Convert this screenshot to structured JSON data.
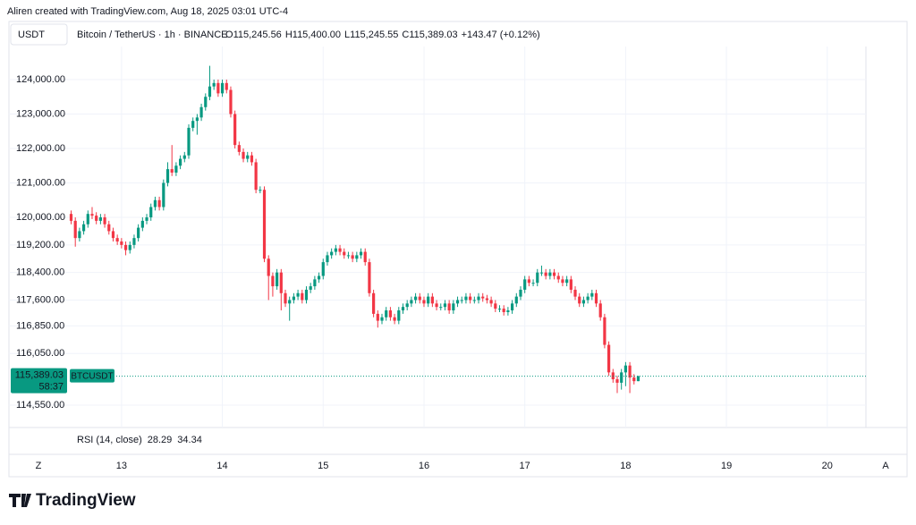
{
  "header": "Aliren created with TradingView.com, Aug 18, 2025 03:01 UTC-4",
  "currency_button": "USDT",
  "symbol_line": "Bitcoin / TetherUS · 1h · BINANCE",
  "ohlc_legend": [
    {
      "label": "O",
      "value": "115,245.56"
    },
    {
      "label": "H",
      "value": "115,400.00"
    },
    {
      "label": "L",
      "value": "115,245.55"
    },
    {
      "label": "C",
      "value": "115,389.03"
    }
  ],
  "change": "+143.47 (+0.12%)",
  "rsi": {
    "label": "RSI (14, close)",
    "values": [
      28.29,
      34.34
    ],
    "colors": [
      "#9c27b0",
      "#e6e600"
    ]
  },
  "axis_buttons": [
    "Z",
    "A"
  ],
  "logo": "TradingView",
  "chart_data": {
    "type": "candlestick",
    "up_color": "#089981",
    "down_color": "#f23645",
    "grid": true,
    "last_price": {
      "value": 115389.03,
      "label": "115,389.03"
    },
    "countdown": "58:37",
    "symbol_tag": "BTCUSDT",
    "ylim": [
      113900,
      124960
    ],
    "yticks": [
      {
        "value": 124000,
        "label": "124,000.00"
      },
      {
        "value": 123000,
        "label": "123,000.00"
      },
      {
        "value": 122000,
        "label": "122,000.00"
      },
      {
        "value": 121000,
        "label": "121,000.00"
      },
      {
        "value": 120000,
        "label": "120,000.00"
      },
      {
        "value": 119200,
        "label": "119,200.00"
      },
      {
        "value": 118400,
        "label": "118,400.00"
      },
      {
        "value": 117600,
        "label": "117,600.00"
      },
      {
        "value": 116850,
        "label": "116,850.00"
      },
      {
        "value": 116050,
        "label": "116,050.00"
      },
      {
        "value": 114550,
        "label": "114,550.00"
      }
    ],
    "xlim": [
      -26.8,
      177.2
    ],
    "xticks": [
      {
        "value": 0,
        "label": "13"
      },
      {
        "value": 24,
        "label": "14"
      },
      {
        "value": 48,
        "label": "15"
      },
      {
        "value": 72,
        "label": "16"
      },
      {
        "value": 96,
        "label": "17"
      },
      {
        "value": 120,
        "label": "18"
      },
      {
        "value": 144,
        "label": "19"
      },
      {
        "value": 168,
        "label": "20"
      }
    ],
    "x": [
      -12,
      -11,
      -10,
      -9,
      -8,
      -7,
      -6,
      -5,
      -4,
      -3,
      -2,
      -1,
      0,
      1,
      2,
      3,
      4,
      5,
      6,
      7,
      8,
      9,
      10,
      11,
      12,
      13,
      14,
      15,
      16,
      17,
      18,
      19,
      20,
      21,
      22,
      23,
      24,
      25,
      26,
      27,
      28,
      29,
      30,
      31,
      32,
      33,
      34,
      35,
      36,
      37,
      38,
      39,
      40,
      41,
      42,
      43,
      44,
      45,
      46,
      47,
      48,
      49,
      50,
      51,
      52,
      53,
      54,
      55,
      56,
      57,
      58,
      59,
      60,
      61,
      62,
      63,
      64,
      65,
      66,
      67,
      68,
      69,
      70,
      71,
      72,
      73,
      74,
      75,
      76,
      77,
      78,
      79,
      80,
      81,
      82,
      83,
      84,
      85,
      86,
      87,
      88,
      89,
      90,
      91,
      92,
      93,
      94,
      95,
      96,
      97,
      98,
      99,
      100,
      101,
      102,
      103,
      104,
      105,
      106,
      107,
      108,
      109,
      110,
      111,
      112,
      113,
      114,
      115,
      116,
      117,
      118,
      119,
      120,
      121,
      122,
      123
    ],
    "open": [
      120100,
      119900,
      119400,
      119600,
      119800,
      120100,
      120050,
      119900,
      120000,
      119800,
      119600,
      119400,
      119300,
      119200,
      119050,
      119200,
      119400,
      119700,
      119900,
      120000,
      120300,
      120500,
      120300,
      121000,
      121400,
      121300,
      121500,
      121700,
      121800,
      122600,
      122800,
      122900,
      123200,
      123500,
      123800,
      123900,
      123600,
      123900,
      123700,
      123000,
      122100,
      121900,
      121700,
      121800,
      121600,
      120800,
      120800,
      118800,
      118300,
      118000,
      118400,
      117800,
      117500,
      117600,
      117700,
      117800,
      117600,
      117900,
      118000,
      118200,
      118300,
      118700,
      118900,
      119000,
      119100,
      119000,
      118900,
      118900,
      118800,
      118900,
      119000,
      118700,
      117800,
      117200,
      117000,
      117100,
      117300,
      117100,
      117000,
      117300,
      117400,
      117500,
      117600,
      117700,
      117600,
      117500,
      117700,
      117500,
      117400,
      117400,
      117500,
      117300,
      117500,
      117600,
      117600,
      117700,
      117600,
      117600,
      117700,
      117650,
      117600,
      117500,
      117350,
      117350,
      117250,
      117300,
      117500,
      117700,
      117900,
      118200,
      118100,
      118100,
      118400,
      118400,
      118300,
      118400,
      118300,
      118200,
      118100,
      118200,
      117900,
      117700,
      117500,
      117600,
      117700,
      117800,
      117500,
      117100,
      116300,
      115500,
      115300,
      115200,
      115500,
      115700,
      115350,
      115245.56
    ],
    "high": [
      120200,
      120000,
      119700,
      119900,
      120200,
      120300,
      120150,
      120100,
      120100,
      119900,
      119700,
      119500,
      119400,
      119300,
      119300,
      119500,
      119800,
      120000,
      120100,
      120400,
      120600,
      120600,
      121100,
      121600,
      122100,
      121600,
      121800,
      121900,
      122700,
      122900,
      123000,
      123300,
      123600,
      124400,
      124000,
      124000,
      124000,
      124000,
      123800,
      123100,
      122200,
      122000,
      121900,
      121900,
      121700,
      120900,
      120900,
      118900,
      118400,
      118500,
      118500,
      117900,
      117700,
      117800,
      117900,
      117900,
      118000,
      118100,
      118300,
      118400,
      118800,
      119000,
      119100,
      119200,
      119200,
      119100,
      119000,
      119000,
      119000,
      119100,
      119100,
      118800,
      117900,
      117300,
      117200,
      117400,
      117400,
      117200,
      117400,
      117500,
      117600,
      117700,
      117800,
      117800,
      117700,
      117800,
      117800,
      117600,
      117500,
      117600,
      117600,
      117600,
      117700,
      117700,
      117800,
      117800,
      117700,
      117800,
      117800,
      117750,
      117700,
      117600,
      117450,
      117450,
      117400,
      117600,
      117800,
      118000,
      118300,
      118300,
      118200,
      118500,
      118600,
      118500,
      118500,
      118500,
      118400,
      118300,
      118300,
      118300,
      118000,
      117800,
      117700,
      117800,
      117900,
      117900,
      117600,
      117200,
      116400,
      115600,
      115400,
      115600,
      115800,
      115800,
      115450,
      115400
    ],
    "low": [
      119800,
      119150,
      119300,
      119500,
      119700,
      119950,
      119800,
      119800,
      119700,
      119500,
      119300,
      119200,
      119100,
      118900,
      118950,
      119100,
      119300,
      119600,
      119800,
      119900,
      120200,
      120200,
      120200,
      120900,
      121200,
      121200,
      121400,
      121600,
      121700,
      122500,
      122400,
      122800,
      123100,
      123400,
      123700,
      123500,
      123500,
      123600,
      122900,
      122000,
      121800,
      121600,
      121600,
      121500,
      120700,
      120700,
      118700,
      117600,
      117700,
      117900,
      117300,
      117400,
      117000,
      117500,
      117600,
      117500,
      117500,
      117800,
      117900,
      118100,
      118200,
      118600,
      118800,
      118900,
      118900,
      118800,
      118800,
      118700,
      118700,
      118800,
      118600,
      117700,
      117100,
      116800,
      116900,
      117000,
      117000,
      116900,
      116900,
      117200,
      117300,
      117400,
      117500,
      117500,
      117400,
      117400,
      117400,
      117300,
      117300,
      117300,
      117200,
      117200,
      117400,
      117500,
      117500,
      117500,
      117500,
      117500,
      117550,
      117500,
      117400,
      117250,
      117250,
      117150,
      117150,
      117200,
      117400,
      117600,
      117800,
      118000,
      118000,
      118000,
      118300,
      118200,
      118200,
      118200,
      118100,
      118000,
      118000,
      117800,
      117600,
      117400,
      117400,
      117500,
      117600,
      117400,
      117000,
      116200,
      115400,
      115200,
      114900,
      115000,
      115100,
      114900,
      115150,
      115245.55
    ],
    "close": [
      119900,
      119400,
      119600,
      119800,
      120100,
      120050,
      119900,
      120000,
      119800,
      119600,
      119400,
      119300,
      119200,
      119050,
      119200,
      119400,
      119700,
      119900,
      120000,
      120300,
      120500,
      120300,
      121000,
      121400,
      121300,
      121500,
      121700,
      121800,
      122600,
      122800,
      122900,
      123200,
      123500,
      123800,
      123900,
      123600,
      123900,
      123700,
      123000,
      122100,
      121900,
      121700,
      121800,
      121600,
      120800,
      120800,
      118800,
      118300,
      118000,
      118400,
      117800,
      117500,
      117600,
      117700,
      117800,
      117600,
      117900,
      118000,
      118200,
      118300,
      118700,
      118900,
      119000,
      119100,
      119000,
      118900,
      118900,
      118800,
      118900,
      119000,
      118700,
      117800,
      117200,
      117000,
      117100,
      117300,
      117100,
      117000,
      117300,
      117400,
      117500,
      117600,
      117700,
      117600,
      117500,
      117700,
      117500,
      117400,
      117400,
      117500,
      117300,
      117500,
      117600,
      117600,
      117700,
      117600,
      117600,
      117700,
      117650,
      117600,
      117500,
      117350,
      117350,
      117250,
      117300,
      117500,
      117700,
      117900,
      118200,
      118100,
      118100,
      118400,
      118400,
      118300,
      118400,
      118300,
      118200,
      118100,
      118200,
      117900,
      117700,
      117500,
      117600,
      117700,
      117800,
      117500,
      117100,
      116300,
      115500,
      115300,
      115200,
      115500,
      115700,
      115350,
      115245.56,
      115389.03
    ]
  }
}
